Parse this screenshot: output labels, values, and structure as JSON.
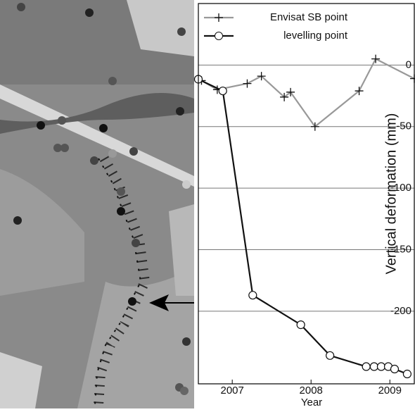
{
  "chart_data": {
    "type": "line",
    "x_label": "Year",
    "y_label": "Vertical deformation (mm)",
    "xlim": [
      2006.57,
      2009.31
    ],
    "xticks": [
      2007,
      2008,
      2009
    ],
    "ylim": [
      -259,
      50
    ],
    "yticks": [
      0,
      -50,
      -100,
      -150,
      -200
    ],
    "grid": true,
    "legend": "upper left",
    "series": [
      {
        "name": "Envisat SB point",
        "color": "#999999",
        "marker": "+",
        "x": [
          2006.61,
          2006.81,
          2007.19,
          2007.37,
          2007.66,
          2007.74,
          2008.05,
          2008.61,
          2008.82,
          2009.31
        ],
        "values": [
          -12.6,
          -20,
          -15,
          -9,
          -26,
          -22,
          -50,
          -21,
          5,
          -11
        ]
      },
      {
        "name": "levelling point",
        "color": "#111111",
        "marker": "o",
        "x": [
          2006.57,
          2006.88,
          2007.26,
          2007.87,
          2008.24,
          2008.7,
          2008.8,
          2008.89,
          2008.98,
          2009.06,
          2009.22
        ],
        "values": [
          -11.5,
          -21,
          -187,
          -211,
          -236,
          -245,
          -245,
          -245,
          -245,
          -247,
          -251
        ]
      }
    ]
  }
}
